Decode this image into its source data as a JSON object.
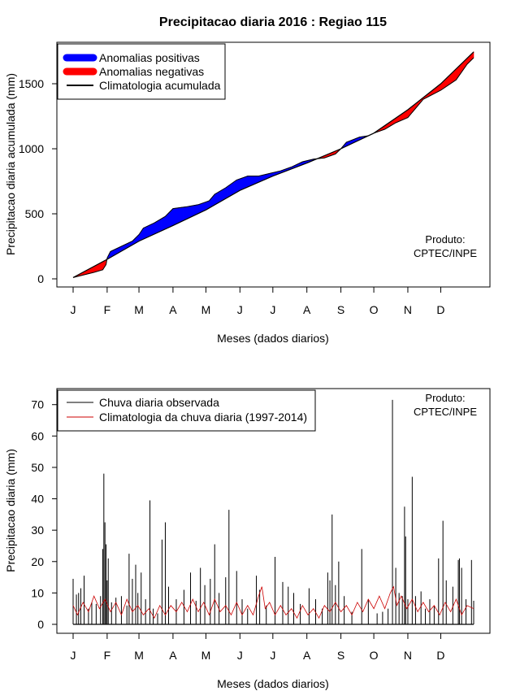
{
  "title": "Precipitacao diaria 2016 : Regiao 115",
  "chart_data": [
    {
      "type": "area",
      "ylabel": "Precipitacao diaria acumulada (mm)",
      "xlabel": "Meses (dados diarios)",
      "x_tick_labels": [
        "J",
        "F",
        "M",
        "A",
        "M",
        "J",
        "J",
        "A",
        "S",
        "O",
        "N",
        "D"
      ],
      "x_tick_days": [
        1,
        32,
        61,
        92,
        122,
        153,
        183,
        214,
        245,
        275,
        306,
        336
      ],
      "xlim": [
        1,
        366
      ],
      "ylim": [
        0,
        1750
      ],
      "y_ticks": [
        0,
        500,
        1000,
        1500
      ],
      "legend": {
        "position": "top-left",
        "entries": [
          {
            "label": "Anomalias positivas",
            "color": "#0000ff"
          },
          {
            "label": "Anomalias negativas",
            "color": "#ff0000"
          },
          {
            "label": "Climatologia acumulada",
            "color": "#000000"
          }
        ]
      },
      "annotation": [
        "Produto:",
        "CPTEC/INPE"
      ],
      "climatology_points": [
        [
          1,
          10
        ],
        [
          32,
          150
        ],
        [
          61,
          290
        ],
        [
          92,
          410
        ],
        [
          122,
          530
        ],
        [
          153,
          680
        ],
        [
          183,
          790
        ],
        [
          214,
          890
        ],
        [
          245,
          1000
        ],
        [
          275,
          1120
        ],
        [
          306,
          1300
        ],
        [
          336,
          1500
        ],
        [
          366,
          1745
        ]
      ],
      "observed_points": [
        [
          1,
          10
        ],
        [
          20,
          50
        ],
        [
          28,
          70
        ],
        [
          31,
          110
        ],
        [
          32,
          160
        ],
        [
          35,
          210
        ],
        [
          45,
          250
        ],
        [
          55,
          290
        ],
        [
          61,
          340
        ],
        [
          65,
          390
        ],
        [
          75,
          430
        ],
        [
          85,
          480
        ],
        [
          92,
          540
        ],
        [
          105,
          555
        ],
        [
          115,
          570
        ],
        [
          125,
          600
        ],
        [
          130,
          650
        ],
        [
          140,
          700
        ],
        [
          150,
          760
        ],
        [
          160,
          790
        ],
        [
          170,
          790
        ],
        [
          180,
          810
        ],
        [
          190,
          830
        ],
        [
          200,
          860
        ],
        [
          210,
          900
        ],
        [
          220,
          920
        ],
        [
          230,
          930
        ],
        [
          240,
          960
        ],
        [
          245,
          1000
        ],
        [
          250,
          1050
        ],
        [
          262,
          1090
        ],
        [
          270,
          1100
        ],
        [
          275,
          1120
        ],
        [
          285,
          1150
        ],
        [
          295,
          1200
        ],
        [
          306,
          1240
        ],
        [
          320,
          1380
        ],
        [
          336,
          1450
        ],
        [
          350,
          1530
        ],
        [
          360,
          1650
        ],
        [
          366,
          1700
        ]
      ]
    },
    {
      "type": "line",
      "ylabel": "Precipitacao diaria (mm)",
      "xlabel": "Meses (dados diarios)",
      "x_tick_labels": [
        "J",
        "F",
        "M",
        "A",
        "M",
        "J",
        "J",
        "A",
        "S",
        "O",
        "N",
        "D"
      ],
      "x_tick_days": [
        1,
        32,
        61,
        92,
        122,
        153,
        183,
        214,
        245,
        275,
        306,
        336
      ],
      "xlim": [
        1,
        366
      ],
      "ylim": [
        0,
        72
      ],
      "y_ticks": [
        0,
        10,
        20,
        30,
        40,
        50,
        60,
        70
      ],
      "legend": {
        "position": "top-left",
        "entries": [
          {
            "label": "Chuva diaria observada",
            "color": "#000000"
          },
          {
            "label": "Climatologia da chuva diaria (1997-2014)",
            "color": "#cc0000"
          }
        ]
      },
      "annotation": [
        "Produto:",
        "CPTEC/INPE"
      ],
      "observed_spikes": [
        [
          1,
          14.5
        ],
        [
          4,
          9.5
        ],
        [
          6,
          10
        ],
        [
          8,
          11.5
        ],
        [
          11,
          15.5
        ],
        [
          15,
          5
        ],
        [
          18,
          7
        ],
        [
          22,
          6.5
        ],
        [
          26,
          9
        ],
        [
          28,
          24
        ],
        [
          29,
          48
        ],
        [
          30,
          32.5
        ],
        [
          31,
          25.5
        ],
        [
          32,
          14
        ],
        [
          33,
          21
        ],
        [
          36,
          7
        ],
        [
          40,
          8.5
        ],
        [
          45,
          9
        ],
        [
          50,
          6
        ],
        [
          52,
          22.5
        ],
        [
          55,
          14.5
        ],
        [
          58,
          19
        ],
        [
          60,
          10
        ],
        [
          63,
          16.5
        ],
        [
          67,
          8
        ],
        [
          71,
          39.5
        ],
        [
          74,
          5
        ],
        [
          78,
          3.5
        ],
        [
          82,
          27
        ],
        [
          85,
          32.5
        ],
        [
          88,
          12
        ],
        [
          95,
          8
        ],
        [
          102,
          11
        ],
        [
          108,
          16.5
        ],
        [
          113,
          7.5
        ],
        [
          117,
          18
        ],
        [
          121,
          12.5
        ],
        [
          126,
          14.5
        ],
        [
          130,
          25.5
        ],
        [
          134,
          10
        ],
        [
          140,
          15
        ],
        [
          143,
          36.5
        ],
        [
          150,
          17
        ],
        [
          155,
          8
        ],
        [
          160,
          5
        ],
        [
          168,
          15.5
        ],
        [
          171,
          11
        ],
        [
          177,
          6
        ],
        [
          185,
          21.5
        ],
        [
          192,
          13.5
        ],
        [
          197,
          12
        ],
        [
          202,
          10
        ],
        [
          208,
          6.5
        ],
        [
          216,
          11.5
        ],
        [
          222,
          8
        ],
        [
          228,
          5
        ],
        [
          233,
          16.5
        ],
        [
          235,
          14
        ],
        [
          237,
          35
        ],
        [
          240,
          12.5
        ],
        [
          243,
          20
        ],
        [
          248,
          9
        ],
        [
          255,
          4
        ],
        [
          264,
          24
        ],
        [
          270,
          8
        ],
        [
          278,
          3.5
        ],
        [
          283,
          4
        ],
        [
          288,
          5
        ],
        [
          292,
          71.5
        ],
        [
          295,
          18
        ],
        [
          298,
          10
        ],
        [
          301,
          9
        ],
        [
          303,
          37.5
        ],
        [
          304,
          28
        ],
        [
          306,
          8
        ],
        [
          310,
          47
        ],
        [
          313,
          9
        ],
        [
          318,
          10.5
        ],
        [
          322,
          5
        ],
        [
          326,
          8
        ],
        [
          330,
          6
        ],
        [
          334,
          21
        ],
        [
          338,
          33
        ],
        [
          341,
          14
        ],
        [
          347,
          12
        ],
        [
          352,
          20.5
        ],
        [
          353,
          21
        ],
        [
          355,
          18
        ],
        [
          359,
          8
        ],
        [
          364,
          20.5
        ],
        [
          366,
          7.5
        ]
      ],
      "climatology_points": [
        [
          1,
          6
        ],
        [
          5,
          3
        ],
        [
          10,
          7
        ],
        [
          15,
          4
        ],
        [
          20,
          9
        ],
        [
          25,
          5
        ],
        [
          30,
          8
        ],
        [
          35,
          4
        ],
        [
          40,
          7
        ],
        [
          45,
          3
        ],
        [
          50,
          8
        ],
        [
          55,
          4
        ],
        [
          60,
          6
        ],
        [
          65,
          3
        ],
        [
          70,
          5
        ],
        [
          75,
          2
        ],
        [
          80,
          6
        ],
        [
          85,
          3
        ],
        [
          90,
          6
        ],
        [
          95,
          4
        ],
        [
          100,
          7
        ],
        [
          105,
          4
        ],
        [
          110,
          8
        ],
        [
          115,
          4
        ],
        [
          120,
          7
        ],
        [
          125,
          3
        ],
        [
          130,
          8
        ],
        [
          135,
          4
        ],
        [
          140,
          6
        ],
        [
          145,
          3
        ],
        [
          150,
          7
        ],
        [
          155,
          3
        ],
        [
          160,
          6
        ],
        [
          165,
          3
        ],
        [
          170,
          9
        ],
        [
          173,
          12
        ],
        [
          176,
          5
        ],
        [
          180,
          7
        ],
        [
          185,
          3
        ],
        [
          190,
          6
        ],
        [
          195,
          3
        ],
        [
          200,
          5
        ],
        [
          205,
          2
        ],
        [
          210,
          6
        ],
        [
          215,
          3
        ],
        [
          220,
          5
        ],
        [
          225,
          2
        ],
        [
          230,
          6
        ],
        [
          235,
          4
        ],
        [
          240,
          7
        ],
        [
          245,
          4
        ],
        [
          250,
          6
        ],
        [
          255,
          3
        ],
        [
          260,
          7
        ],
        [
          265,
          4
        ],
        [
          270,
          8
        ],
        [
          275,
          5
        ],
        [
          280,
          9
        ],
        [
          285,
          5
        ],
        [
          290,
          10
        ],
        [
          293,
          12
        ],
        [
          296,
          6
        ],
        [
          300,
          9
        ],
        [
          305,
          5
        ],
        [
          310,
          8
        ],
        [
          315,
          4
        ],
        [
          320,
          7
        ],
        [
          325,
          4
        ],
        [
          330,
          6
        ],
        [
          335,
          3
        ],
        [
          340,
          7
        ],
        [
          345,
          4
        ],
        [
          350,
          8
        ],
        [
          355,
          3
        ],
        [
          360,
          6
        ],
        [
          366,
          5
        ]
      ]
    }
  ]
}
